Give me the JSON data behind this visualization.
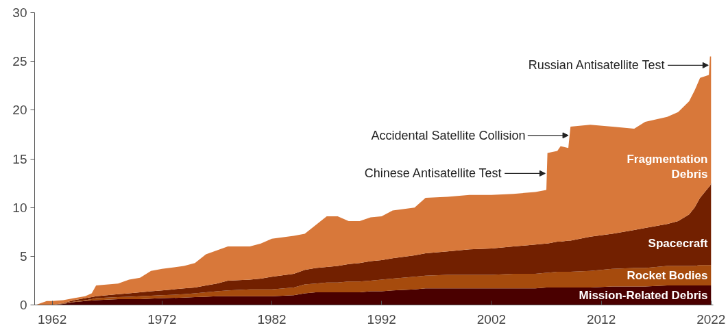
{
  "chart_data": {
    "type": "area",
    "stacked": true,
    "x": [
      1960.5,
      1961.5,
      1962,
      1963,
      1964,
      1965,
      1965.6,
      1966,
      1968,
      1969,
      1970,
      1971,
      1972,
      1974,
      1975,
      1976,
      1977,
      1978,
      1980,
      1981,
      1982,
      1984,
      1985,
      1986,
      1987,
      1988,
      1989,
      1990,
      1991,
      1992,
      1993,
      1995,
      1996,
      1998,
      2000,
      2002,
      2004,
      2006,
      2007,
      2007.1,
      2008,
      2008.3,
      2009,
      2009.2,
      2011,
      2013,
      2015,
      2016,
      2018,
      2019,
      2020,
      2020.5,
      2021,
      2021.8,
      2021.9,
      2022
    ],
    "series": [
      {
        "name": "Mission-Related Debris",
        "color": "#4a0000",
        "values": [
          0,
          0,
          0,
          0.1,
          0.3,
          0.4,
          0.45,
          0.5,
          0.6,
          0.6,
          0.6,
          0.65,
          0.7,
          0.75,
          0.8,
          0.85,
          0.9,
          0.9,
          0.9,
          0.9,
          0.9,
          1.0,
          1.2,
          1.3,
          1.3,
          1.3,
          1.3,
          1.3,
          1.4,
          1.4,
          1.5,
          1.6,
          1.7,
          1.7,
          1.7,
          1.7,
          1.7,
          1.7,
          1.8,
          1.8,
          1.8,
          1.8,
          1.8,
          1.8,
          1.8,
          1.9,
          1.9,
          1.9,
          2.0,
          2.0,
          2.0,
          2.0,
          2.0,
          2.0,
          2.0,
          2.0
        ]
      },
      {
        "name": "Rocket Bodies",
        "color": "#a64b0d",
        "values": [
          0,
          0,
          0,
          0.05,
          0.05,
          0.1,
          0.15,
          0.2,
          0.2,
          0.25,
          0.3,
          0.3,
          0.3,
          0.35,
          0.4,
          0.45,
          0.5,
          0.6,
          0.7,
          0.7,
          0.7,
          0.8,
          0.9,
          0.9,
          1.0,
          1.0,
          1.1,
          1.1,
          1.1,
          1.2,
          1.2,
          1.3,
          1.3,
          1.4,
          1.4,
          1.4,
          1.5,
          1.5,
          1.5,
          1.5,
          1.6,
          1.6,
          1.6,
          1.6,
          1.7,
          1.8,
          1.9,
          1.9,
          2.0,
          2.0,
          2.0,
          2.0,
          2.1,
          2.1,
          2.1,
          2.1
        ]
      },
      {
        "name": "Spacecraft",
        "color": "#722000",
        "values": [
          0,
          0,
          0,
          0.05,
          0.15,
          0.2,
          0.2,
          0.2,
          0.3,
          0.35,
          0.4,
          0.45,
          0.5,
          0.6,
          0.6,
          0.7,
          0.8,
          1.0,
          1.0,
          1.1,
          1.3,
          1.4,
          1.5,
          1.6,
          1.6,
          1.7,
          1.8,
          1.9,
          2.0,
          2.0,
          2.1,
          2.2,
          2.3,
          2.4,
          2.6,
          2.7,
          2.8,
          3.0,
          3.0,
          3.0,
          3.1,
          3.1,
          3.2,
          3.2,
          3.5,
          3.6,
          3.9,
          4.1,
          4.3,
          4.6,
          5.3,
          6.0,
          6.9,
          8.0,
          8.1,
          8.4
        ]
      },
      {
        "name": "Fragmentation\nDebris",
        "color": "#d8783a",
        "values": [
          0,
          0.4,
          0.4,
          0.3,
          0.2,
          0.2,
          0.4,
          1.1,
          1.1,
          1.4,
          1.5,
          2.1,
          2.2,
          2.3,
          2.5,
          3.2,
          3.4,
          3.5,
          3.4,
          3.6,
          3.9,
          3.9,
          3.7,
          4.4,
          5.2,
          5.1,
          4.4,
          4.3,
          4.5,
          4.5,
          4.9,
          4.9,
          5.7,
          5.6,
          5.6,
          5.5,
          5.4,
          5.4,
          5.5,
          9.3,
          9.3,
          9.8,
          9.5,
          11.7,
          11.5,
          11.0,
          10.4,
          10.9,
          11.0,
          11.2,
          11.6,
          12.0,
          12.3,
          11.5,
          13.3,
          13.0
        ]
      }
    ],
    "xlim": [
      1960.4,
      2022.2
    ],
    "ylim": [
      0,
      30
    ],
    "xticks": [
      1962,
      1972,
      1982,
      1992,
      2002,
      2012,
      2022
    ],
    "yticks": [
      0,
      5,
      10,
      15,
      20,
      25,
      30
    ],
    "grid": false,
    "legend": false,
    "annotations": [
      {
        "text": "Chinese Antisatellite Test",
        "x": 2007.0,
        "y": 13.5
      },
      {
        "text": "Accidental Satellite Collision",
        "x": 2009.1,
        "y": 17.4
      },
      {
        "text": "Russian Antisatellite Test",
        "x": 2021.85,
        "y": 24.6
      }
    ]
  }
}
